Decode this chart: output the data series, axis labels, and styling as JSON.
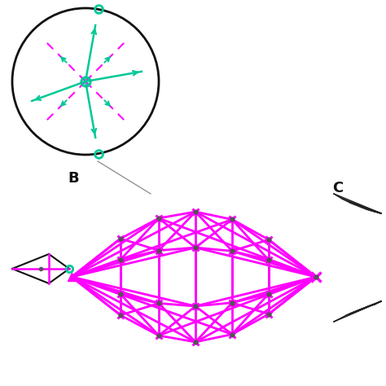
{
  "bg": "#ffffff",
  "mg": "#FF00FF",
  "teal": "#00C896",
  "black": "#111111",
  "gray": "#888888",
  "label_B": "B",
  "label_C": "C"
}
